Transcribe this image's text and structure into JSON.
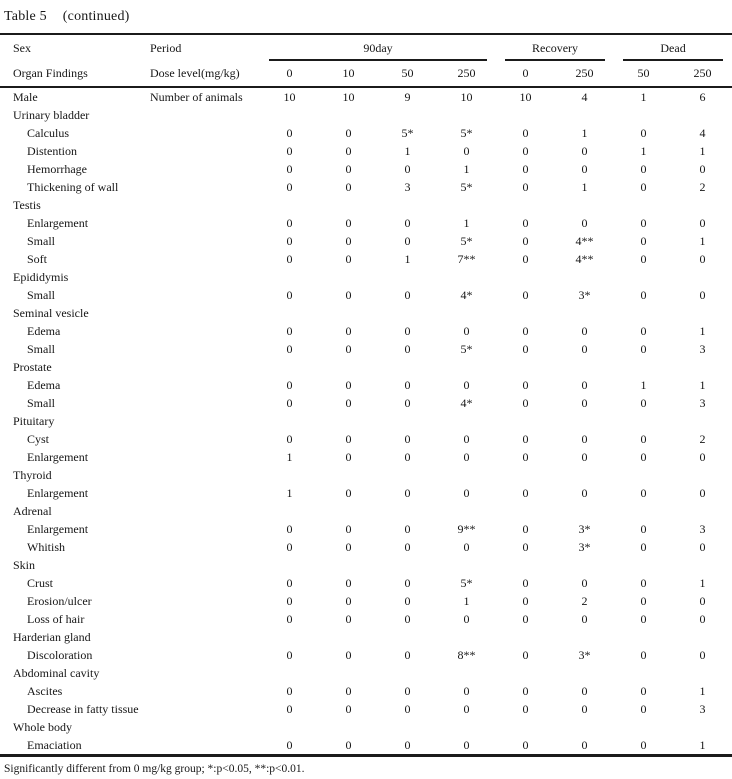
{
  "title": {
    "label": "Table 5",
    "continued": "(continued)"
  },
  "header": {
    "sex": "Sex",
    "period": "Period",
    "organ_findings": "Organ Findings",
    "dose_level": "Dose level(mg/kg)",
    "groups": [
      {
        "label": "90day",
        "span": 4
      },
      {
        "label": "Recovery",
        "span": 2
      },
      {
        "label": "Dead",
        "span": 2
      }
    ],
    "doses": [
      "0",
      "10",
      "50",
      "250",
      "0",
      "250",
      "50",
      "250"
    ]
  },
  "animals_row": {
    "sex": "Male",
    "label": "Number of animals",
    "values": [
      "10",
      "10",
      "9",
      "10",
      "10",
      "4",
      "1",
      "6"
    ]
  },
  "rows": [
    {
      "type": "group",
      "label": "Urinary bladder"
    },
    {
      "type": "finding",
      "label": "Calculus",
      "values": [
        "0",
        "0",
        "5*",
        "5*",
        "0",
        "1",
        "0",
        "4"
      ]
    },
    {
      "type": "finding",
      "label": "Distention",
      "values": [
        "0",
        "0",
        "1",
        "0",
        "0",
        "0",
        "1",
        "1"
      ]
    },
    {
      "type": "finding",
      "label": "Hemorrhage",
      "values": [
        "0",
        "0",
        "0",
        "1",
        "0",
        "0",
        "0",
        "0"
      ]
    },
    {
      "type": "finding",
      "label": "Thickening of wall",
      "values": [
        "0",
        "0",
        "3",
        "5*",
        "0",
        "1",
        "0",
        "2"
      ]
    },
    {
      "type": "group",
      "label": "Testis"
    },
    {
      "type": "finding",
      "label": "Enlargement",
      "values": [
        "0",
        "0",
        "0",
        "1",
        "0",
        "0",
        "0",
        "0"
      ]
    },
    {
      "type": "finding",
      "label": "Small",
      "values": [
        "0",
        "0",
        "0",
        "5*",
        "0",
        "4**",
        "0",
        "1"
      ]
    },
    {
      "type": "finding",
      "label": "Soft",
      "values": [
        "0",
        "0",
        "1",
        "7**",
        "0",
        "4**",
        "0",
        "0"
      ]
    },
    {
      "type": "group",
      "label": "Epididymis"
    },
    {
      "type": "finding",
      "label": "Small",
      "values": [
        "0",
        "0",
        "0",
        "4*",
        "0",
        "3*",
        "0",
        "0"
      ]
    },
    {
      "type": "group",
      "label": "Seminal vesicle"
    },
    {
      "type": "finding",
      "label": "Edema",
      "values": [
        "0",
        "0",
        "0",
        "0",
        "0",
        "0",
        "0",
        "1"
      ]
    },
    {
      "type": "finding",
      "label": "Small",
      "values": [
        "0",
        "0",
        "0",
        "5*",
        "0",
        "0",
        "0",
        "3"
      ]
    },
    {
      "type": "group",
      "label": "Prostate"
    },
    {
      "type": "finding",
      "label": "Edema",
      "values": [
        "0",
        "0",
        "0",
        "0",
        "0",
        "0",
        "1",
        "1"
      ]
    },
    {
      "type": "finding",
      "label": "Small",
      "values": [
        "0",
        "0",
        "0",
        "4*",
        "0",
        "0",
        "0",
        "3"
      ]
    },
    {
      "type": "group",
      "label": "Pituitary"
    },
    {
      "type": "finding",
      "label": "Cyst",
      "values": [
        "0",
        "0",
        "0",
        "0",
        "0",
        "0",
        "0",
        "2"
      ]
    },
    {
      "type": "finding",
      "label": "Enlargement",
      "values": [
        "1",
        "0",
        "0",
        "0",
        "0",
        "0",
        "0",
        "0"
      ]
    },
    {
      "type": "group",
      "label": "Thyroid"
    },
    {
      "type": "finding",
      "label": "Enlargement",
      "values": [
        "1",
        "0",
        "0",
        "0",
        "0",
        "0",
        "0",
        "0"
      ]
    },
    {
      "type": "group",
      "label": "Adrenal"
    },
    {
      "type": "finding",
      "label": "Enlargement",
      "values": [
        "0",
        "0",
        "0",
        "9**",
        "0",
        "3*",
        "0",
        "3"
      ]
    },
    {
      "type": "finding",
      "label": "Whitish",
      "values": [
        "0",
        "0",
        "0",
        "0",
        "0",
        "3*",
        "0",
        "0"
      ]
    },
    {
      "type": "group",
      "label": "Skin"
    },
    {
      "type": "finding",
      "label": "Crust",
      "values": [
        "0",
        "0",
        "0",
        "5*",
        "0",
        "0",
        "0",
        "1"
      ]
    },
    {
      "type": "finding",
      "label": "Erosion/ulcer",
      "values": [
        "0",
        "0",
        "0",
        "1",
        "0",
        "2",
        "0",
        "0"
      ]
    },
    {
      "type": "finding",
      "label": "Loss of hair",
      "values": [
        "0",
        "0",
        "0",
        "0",
        "0",
        "0",
        "0",
        "0"
      ]
    },
    {
      "type": "group",
      "label": "Harderian gland"
    },
    {
      "type": "finding",
      "label": "Discoloration",
      "values": [
        "0",
        "0",
        "0",
        "8**",
        "0",
        "3*",
        "0",
        "0"
      ]
    },
    {
      "type": "group",
      "label": "Abdominal cavity"
    },
    {
      "type": "finding",
      "label": "Ascites",
      "values": [
        "0",
        "0",
        "0",
        "0",
        "0",
        "0",
        "0",
        "1"
      ]
    },
    {
      "type": "finding",
      "label": "Decrease in fatty tissue",
      "values": [
        "0",
        "0",
        "0",
        "0",
        "0",
        "0",
        "0",
        "3"
      ]
    },
    {
      "type": "group",
      "label": "Whole body"
    },
    {
      "type": "finding",
      "label": "Emaciation",
      "values": [
        "0",
        "0",
        "0",
        "0",
        "0",
        "0",
        "0",
        "1"
      ]
    }
  ],
  "footnote": "Significantly different from 0 mg/kg group; *:p<0.05, **:p<0.01."
}
